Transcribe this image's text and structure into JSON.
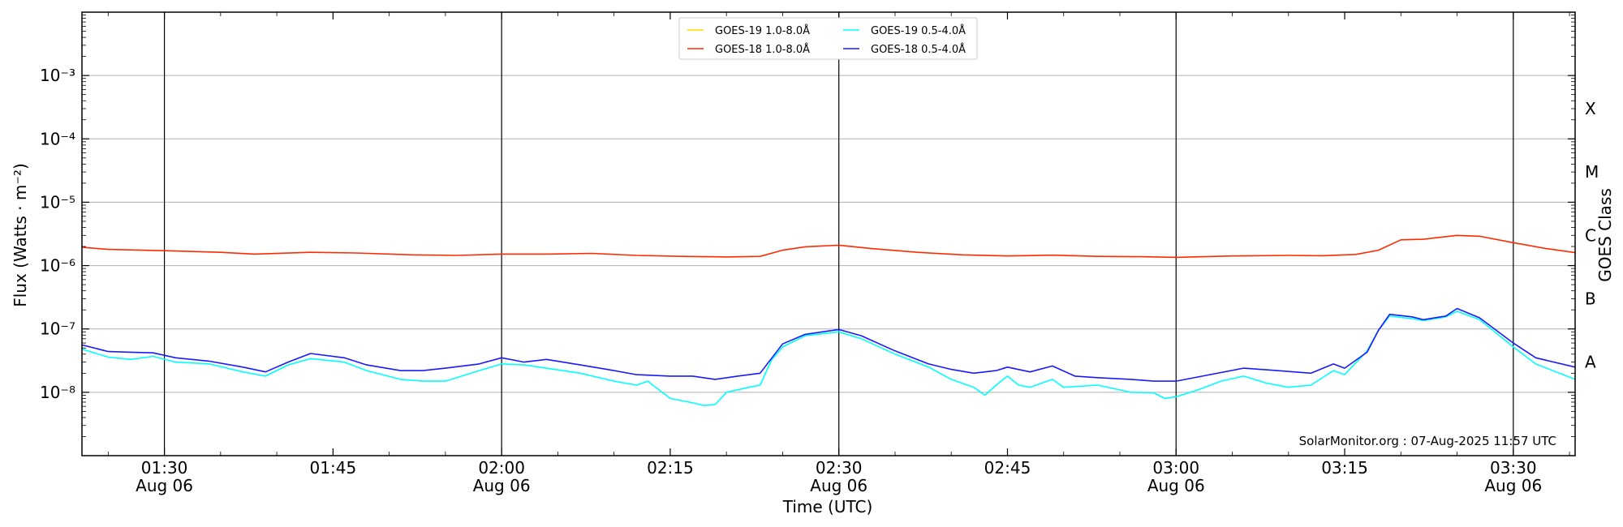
{
  "chart_data": {
    "type": "line",
    "title": "",
    "xlabel": "Time (UTC)",
    "ylabel": "Flux (Watts · m⁻²)",
    "y2label": "GOES Class",
    "y_scale": "log",
    "ylim": [
      1e-09,
      0.01
    ],
    "y_ticks": [
      {
        "value": 1e-08,
        "label": "10⁻⁸"
      },
      {
        "value": 1e-07,
        "label": "10⁻⁷"
      },
      {
        "value": 1e-06,
        "label": "10⁻⁶"
      },
      {
        "value": 1e-05,
        "label": "10⁻⁵"
      },
      {
        "value": 0.0001,
        "label": "10⁻⁴"
      },
      {
        "value": 0.001,
        "label": "10⁻³"
      }
    ],
    "goes_classes": [
      {
        "value": 3e-08,
        "label": "A"
      },
      {
        "value": 3e-07,
        "label": "B"
      },
      {
        "value": 3e-06,
        "label": "C"
      },
      {
        "value": 3e-05,
        "label": "M"
      },
      {
        "value": 0.0003,
        "label": "X"
      }
    ],
    "xlim": [
      "2025-08-06 01:22:40",
      "2025-08-06 03:35:30"
    ],
    "x_ticks": [
      {
        "time": "2025-08-06 01:30",
        "label": "01:30",
        "sublabel": "Aug 06"
      },
      {
        "time": "2025-08-06 01:45",
        "label": "01:45",
        "sublabel": ""
      },
      {
        "time": "2025-08-06 02:00",
        "label": "02:00",
        "sublabel": "Aug 06"
      },
      {
        "time": "2025-08-06 02:15",
        "label": "02:15",
        "sublabel": ""
      },
      {
        "time": "2025-08-06 02:30",
        "label": "02:30",
        "sublabel": "Aug 06"
      },
      {
        "time": "2025-08-06 02:45",
        "label": "02:45",
        "sublabel": ""
      },
      {
        "time": "2025-08-06 03:00",
        "label": "03:00",
        "sublabel": "Aug 06"
      },
      {
        "time": "2025-08-06 03:15",
        "label": "03:15",
        "sublabel": ""
      },
      {
        "time": "2025-08-06 03:30",
        "label": "03:30",
        "sublabel": "Aug 06"
      }
    ],
    "vertical_lines": [
      "2025-08-06 01:30",
      "2025-08-06 02:00",
      "2025-08-06 02:30",
      "2025-08-06 03:00",
      "2025-08-06 03:30"
    ],
    "grid": "horizontal at decades",
    "legend_position": "top-center",
    "credit": "SolarMonitor.org : 07-Aug-2025 11:57 UTC",
    "series": [
      {
        "name": "GOES-19 1.0-8.0Å",
        "color": "#ffd700",
        "values": []
      },
      {
        "name": "GOES-18 1.0-8.0Å",
        "color": "#ff2a00",
        "values": [
          [
            "2025-08-06 01:22:40",
            1.95e-06
          ],
          [
            "2025-08-06 01:25",
            1.8e-06
          ],
          [
            "2025-08-06 01:30",
            1.72e-06
          ],
          [
            "2025-08-06 01:35",
            1.62e-06
          ],
          [
            "2025-08-06 01:38",
            1.52e-06
          ],
          [
            "2025-08-06 01:43",
            1.62e-06
          ],
          [
            "2025-08-06 01:47",
            1.58e-06
          ],
          [
            "2025-08-06 01:52",
            1.48e-06
          ],
          [
            "2025-08-06 01:56",
            1.45e-06
          ],
          [
            "2025-08-06 02:00",
            1.52e-06
          ],
          [
            "2025-08-06 02:04",
            1.52e-06
          ],
          [
            "2025-08-06 02:08",
            1.56e-06
          ],
          [
            "2025-08-06 02:12",
            1.45e-06
          ],
          [
            "2025-08-06 02:16",
            1.4e-06
          ],
          [
            "2025-08-06 02:20",
            1.37e-06
          ],
          [
            "2025-08-06 02:23",
            1.4e-06
          ],
          [
            "2025-08-06 02:25",
            1.75e-06
          ],
          [
            "2025-08-06 02:27",
            1.98e-06
          ],
          [
            "2025-08-06 02:30",
            2.1e-06
          ],
          [
            "2025-08-06 02:33",
            1.85e-06
          ],
          [
            "2025-08-06 02:37",
            1.62e-06
          ],
          [
            "2025-08-06 02:41",
            1.48e-06
          ],
          [
            "2025-08-06 02:45",
            1.42e-06
          ],
          [
            "2025-08-06 02:49",
            1.46e-06
          ],
          [
            "2025-08-06 02:53",
            1.4e-06
          ],
          [
            "2025-08-06 02:57",
            1.38e-06
          ],
          [
            "2025-08-06 03:00",
            1.35e-06
          ],
          [
            "2025-08-06 03:05",
            1.42e-06
          ],
          [
            "2025-08-06 03:10",
            1.45e-06
          ],
          [
            "2025-08-06 03:13",
            1.43e-06
          ],
          [
            "2025-08-06 03:16",
            1.5e-06
          ],
          [
            "2025-08-06 03:18",
            1.75e-06
          ],
          [
            "2025-08-06 03:20",
            2.55e-06
          ],
          [
            "2025-08-06 03:22",
            2.6e-06
          ],
          [
            "2025-08-06 03:25",
            3e-06
          ],
          [
            "2025-08-06 03:27",
            2.9e-06
          ],
          [
            "2025-08-06 03:30",
            2.3e-06
          ],
          [
            "2025-08-06 03:33",
            1.85e-06
          ],
          [
            "2025-08-06 03:35:30",
            1.6e-06
          ]
        ]
      },
      {
        "name": "GOES-19 0.5-4.0Å",
        "color": "#00ffff",
        "values": [
          [
            "2025-08-06 01:22:40",
            4.8e-08
          ],
          [
            "2025-08-06 01:25",
            3.6e-08
          ],
          [
            "2025-08-06 01:27",
            3.3e-08
          ],
          [
            "2025-08-06 01:29",
            3.7e-08
          ],
          [
            "2025-08-06 01:31",
            3e-08
          ],
          [
            "2025-08-06 01:34",
            2.8e-08
          ],
          [
            "2025-08-06 01:37",
            2.1e-08
          ],
          [
            "2025-08-06 01:39",
            1.8e-08
          ],
          [
            "2025-08-06 01:41",
            2.7e-08
          ],
          [
            "2025-08-06 01:43",
            3.4e-08
          ],
          [
            "2025-08-06 01:46",
            3e-08
          ],
          [
            "2025-08-06 01:48",
            2.2e-08
          ],
          [
            "2025-08-06 01:51",
            1.6e-08
          ],
          [
            "2025-08-06 01:53",
            1.5e-08
          ],
          [
            "2025-08-06 01:55",
            1.5e-08
          ],
          [
            "2025-08-06 01:58",
            2.2e-08
          ],
          [
            "2025-08-06 02:00",
            2.8e-08
          ],
          [
            "2025-08-06 02:02",
            2.7e-08
          ],
          [
            "2025-08-06 02:04",
            2.4e-08
          ],
          [
            "2025-08-06 02:07",
            2e-08
          ],
          [
            "2025-08-06 02:10",
            1.5e-08
          ],
          [
            "2025-08-06 02:12",
            1.3e-08
          ],
          [
            "2025-08-06 02:13",
            1.5e-08
          ],
          [
            "2025-08-06 02:15",
            8e-09
          ],
          [
            "2025-08-06 02:17",
            6.8e-09
          ],
          [
            "2025-08-06 02:18",
            6.2e-09
          ],
          [
            "2025-08-06 02:19",
            6.4e-09
          ],
          [
            "2025-08-06 02:20",
            1e-08
          ],
          [
            "2025-08-06 02:22",
            1.2e-08
          ],
          [
            "2025-08-06 02:23",
            1.3e-08
          ],
          [
            "2025-08-06 02:24",
            3.2e-08
          ],
          [
            "2025-08-06 02:25",
            5.2e-08
          ],
          [
            "2025-08-06 02:27",
            7.8e-08
          ],
          [
            "2025-08-06 02:30",
            9e-08
          ],
          [
            "2025-08-06 02:32",
            7e-08
          ],
          [
            "2025-08-06 02:35",
            4e-08
          ],
          [
            "2025-08-06 02:38",
            2.5e-08
          ],
          [
            "2025-08-06 02:40",
            1.6e-08
          ],
          [
            "2025-08-06 02:42",
            1.2e-08
          ],
          [
            "2025-08-06 02:43",
            9e-09
          ],
          [
            "2025-08-06 02:44",
            1.3e-08
          ],
          [
            "2025-08-06 02:45",
            1.8e-08
          ],
          [
            "2025-08-06 02:46",
            1.3e-08
          ],
          [
            "2025-08-06 02:47",
            1.2e-08
          ],
          [
            "2025-08-06 02:49",
            1.6e-08
          ],
          [
            "2025-08-06 02:50",
            1.2e-08
          ],
          [
            "2025-08-06 02:53",
            1.3e-08
          ],
          [
            "2025-08-06 02:56",
            1e-08
          ],
          [
            "2025-08-06 02:58",
            9.8e-09
          ],
          [
            "2025-08-06 02:59",
            8e-09
          ],
          [
            "2025-08-06 03:00",
            8.5e-09
          ],
          [
            "2025-08-06 03:02",
            1.1e-08
          ],
          [
            "2025-08-06 03:04",
            1.5e-08
          ],
          [
            "2025-08-06 03:06",
            1.8e-08
          ],
          [
            "2025-08-06 03:08",
            1.4e-08
          ],
          [
            "2025-08-06 03:10",
            1.2e-08
          ],
          [
            "2025-08-06 03:12",
            1.3e-08
          ],
          [
            "2025-08-06 03:14",
            2.2e-08
          ],
          [
            "2025-08-06 03:15",
            1.9e-08
          ],
          [
            "2025-08-06 03:17",
            4.5e-08
          ],
          [
            "2025-08-06 03:18",
            9.5e-08
          ],
          [
            "2025-08-06 03:19",
            1.6e-07
          ],
          [
            "2025-08-06 03:21",
            1.45e-07
          ],
          [
            "2025-08-06 03:22",
            1.35e-07
          ],
          [
            "2025-08-06 03:24",
            1.55e-07
          ],
          [
            "2025-08-06 03:25",
            1.9e-07
          ],
          [
            "2025-08-06 03:27",
            1.4e-07
          ],
          [
            "2025-08-06 03:30",
            5.2e-08
          ],
          [
            "2025-08-06 03:32",
            2.8e-08
          ],
          [
            "2025-08-06 03:35:30",
            1.6e-08
          ]
        ]
      },
      {
        "name": "GOES-18 0.5-4.0Å",
        "color": "#1a1aff",
        "values": [
          [
            "2025-08-06 01:22:40",
            5.6e-08
          ],
          [
            "2025-08-06 01:25",
            4.4e-08
          ],
          [
            "2025-08-06 01:27",
            4.3e-08
          ],
          [
            "2025-08-06 01:29",
            4.2e-08
          ],
          [
            "2025-08-06 01:31",
            3.5e-08
          ],
          [
            "2025-08-06 01:34",
            3.1e-08
          ],
          [
            "2025-08-06 01:37",
            2.5e-08
          ],
          [
            "2025-08-06 01:39",
            2.1e-08
          ],
          [
            "2025-08-06 01:41",
            3e-08
          ],
          [
            "2025-08-06 01:43",
            4.1e-08
          ],
          [
            "2025-08-06 01:46",
            3.5e-08
          ],
          [
            "2025-08-06 01:48",
            2.7e-08
          ],
          [
            "2025-08-06 01:51",
            2.2e-08
          ],
          [
            "2025-08-06 01:53",
            2.2e-08
          ],
          [
            "2025-08-06 01:55",
            2.4e-08
          ],
          [
            "2025-08-06 01:58",
            2.8e-08
          ],
          [
            "2025-08-06 02:00",
            3.5e-08
          ],
          [
            "2025-08-06 02:02",
            3e-08
          ],
          [
            "2025-08-06 02:04",
            3.3e-08
          ],
          [
            "2025-08-06 02:07",
            2.7e-08
          ],
          [
            "2025-08-06 02:10",
            2.2e-08
          ],
          [
            "2025-08-06 02:12",
            1.9e-08
          ],
          [
            "2025-08-06 02:15",
            1.8e-08
          ],
          [
            "2025-08-06 02:17",
            1.8e-08
          ],
          [
            "2025-08-06 02:19",
            1.6e-08
          ],
          [
            "2025-08-06 02:21",
            1.8e-08
          ],
          [
            "2025-08-06 02:23",
            2e-08
          ],
          [
            "2025-08-06 02:25",
            5.8e-08
          ],
          [
            "2025-08-06 02:27",
            8.2e-08
          ],
          [
            "2025-08-06 02:30",
            9.8e-08
          ],
          [
            "2025-08-06 02:32",
            7.8e-08
          ],
          [
            "2025-08-06 02:35",
            4.5e-08
          ],
          [
            "2025-08-06 02:38",
            2.8e-08
          ],
          [
            "2025-08-06 02:40",
            2.3e-08
          ],
          [
            "2025-08-06 02:42",
            2e-08
          ],
          [
            "2025-08-06 02:44",
            2.2e-08
          ],
          [
            "2025-08-06 02:45",
            2.5e-08
          ],
          [
            "2025-08-06 02:47",
            2.1e-08
          ],
          [
            "2025-08-06 02:49",
            2.6e-08
          ],
          [
            "2025-08-06 02:51",
            1.8e-08
          ],
          [
            "2025-08-06 02:53",
            1.7e-08
          ],
          [
            "2025-08-06 02:56",
            1.6e-08
          ],
          [
            "2025-08-06 02:58",
            1.5e-08
          ],
          [
            "2025-08-06 03:00",
            1.5e-08
          ],
          [
            "2025-08-06 03:03",
            1.9e-08
          ],
          [
            "2025-08-06 03:06",
            2.4e-08
          ],
          [
            "2025-08-06 03:09",
            2.2e-08
          ],
          [
            "2025-08-06 03:12",
            2e-08
          ],
          [
            "2025-08-06 03:14",
            2.8e-08
          ],
          [
            "2025-08-06 03:15",
            2.4e-08
          ],
          [
            "2025-08-06 03:17",
            4.3e-08
          ],
          [
            "2025-08-06 03:18",
            9.5e-08
          ],
          [
            "2025-08-06 03:19",
            1.7e-07
          ],
          [
            "2025-08-06 03:21",
            1.55e-07
          ],
          [
            "2025-08-06 03:22",
            1.4e-07
          ],
          [
            "2025-08-06 03:24",
            1.6e-07
          ],
          [
            "2025-08-06 03:25",
            2.1e-07
          ],
          [
            "2025-08-06 03:27",
            1.5e-07
          ],
          [
            "2025-08-06 03:30",
            6e-08
          ],
          [
            "2025-08-06 03:32",
            3.5e-08
          ],
          [
            "2025-08-06 03:35:30",
            2.5e-08
          ]
        ]
      }
    ]
  }
}
